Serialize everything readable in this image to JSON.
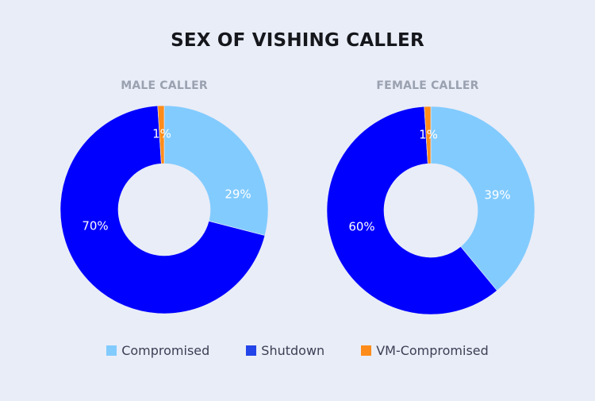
{
  "title": "SEX OF VISHING CALLER",
  "colors": {
    "background": "#e9edf7",
    "compromised": "#82cbff",
    "shutdown": "#0000ff",
    "vm_compromised": "#ff8c1a",
    "legend_shutdown_swatch": "#2244e8"
  },
  "legend": [
    {
      "label": "Compromised",
      "color": "#82cbff"
    },
    {
      "label": "Shutdown",
      "color": "#2244e8"
    },
    {
      "label": "VM-Compromised",
      "color": "#ff8c1a"
    }
  ],
  "charts": {
    "male": {
      "subtitle": "MALE CALLER"
    },
    "female": {
      "subtitle": "FEMALE CALLER"
    }
  },
  "chart_data": [
    {
      "type": "pie",
      "variant": "donut",
      "title": "SEX OF VISHING CALLER",
      "subtitle": "MALE CALLER",
      "categories": [
        "Compromised",
        "Shutdown",
        "VM-Compromised"
      ],
      "values": [
        29,
        70,
        1
      ],
      "labels": [
        "29%",
        "70%",
        "1%"
      ],
      "colors": [
        "#82cbff",
        "#0000ff",
        "#ff8c1a"
      ],
      "start_angle": "12 o'clock, clockwise",
      "legend_position": "bottom"
    },
    {
      "type": "pie",
      "variant": "donut",
      "title": "SEX OF VISHING CALLER",
      "subtitle": "FEMALE CALLER",
      "categories": [
        "Compromised",
        "Shutdown",
        "VM-Compromised"
      ],
      "values": [
        39,
        60,
        1
      ],
      "labels": [
        "39%",
        "60%",
        "1%"
      ],
      "colors": [
        "#82cbff",
        "#0000ff",
        "#ff8c1a"
      ],
      "start_angle": "12 o'clock, clockwise",
      "legend_position": "bottom"
    }
  ]
}
